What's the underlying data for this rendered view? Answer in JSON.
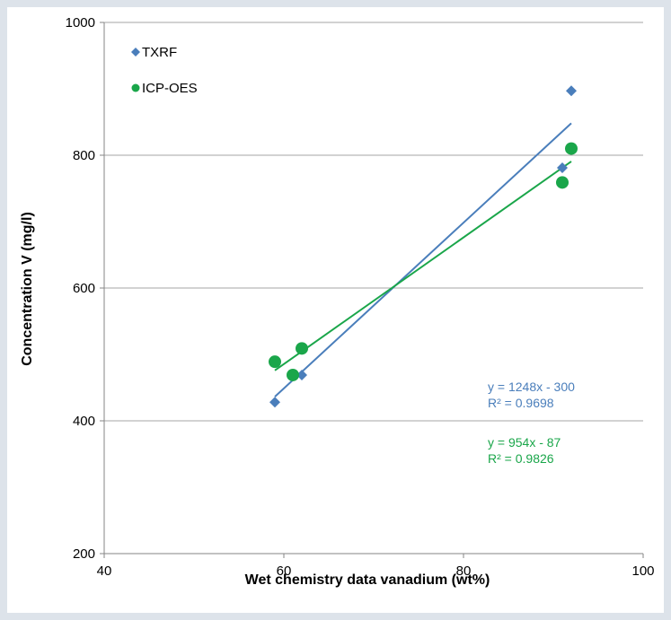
{
  "chart_data": {
    "type": "scatter",
    "title": "",
    "xlabel": "Wet chemistry data vanadium (wt%)",
    "ylabel": "Concentration V (mg/l)",
    "xlim": [
      40,
      100
    ],
    "ylim": [
      200,
      1000
    ],
    "x_ticks": [
      "40",
      "60",
      "80",
      "100"
    ],
    "y_ticks": [
      "200",
      "400",
      "600",
      "800",
      "1000"
    ],
    "grid": "horizontal",
    "legend_position": "top-left",
    "series": [
      {
        "name": "TXRF",
        "color": "#4a7ebb",
        "marker": "diamond",
        "points": [
          [
            59,
            428
          ],
          [
            62,
            469
          ],
          [
            91,
            781
          ],
          [
            92,
            897
          ]
        ],
        "trendline": {
          "slope": 1248,
          "intercept": -300,
          "x_range": [
            59,
            92
          ],
          "x_scale": 0.01
        },
        "equation": "y = 1248x - 300",
        "r2": "R² = 0.9698"
      },
      {
        "name": "ICP-OES",
        "color": "#1aa64a",
        "marker": "circle",
        "points": [
          [
            59,
            489
          ],
          [
            61,
            469
          ],
          [
            62,
            509
          ],
          [
            91,
            759
          ],
          [
            92,
            810
          ]
        ],
        "trendline": {
          "slope": 954,
          "intercept": -87,
          "x_range": [
            59,
            92
          ],
          "x_scale": 0.01
        },
        "equation": "y = 954x - 87",
        "r2": "R² = 0.9826"
      }
    ]
  }
}
